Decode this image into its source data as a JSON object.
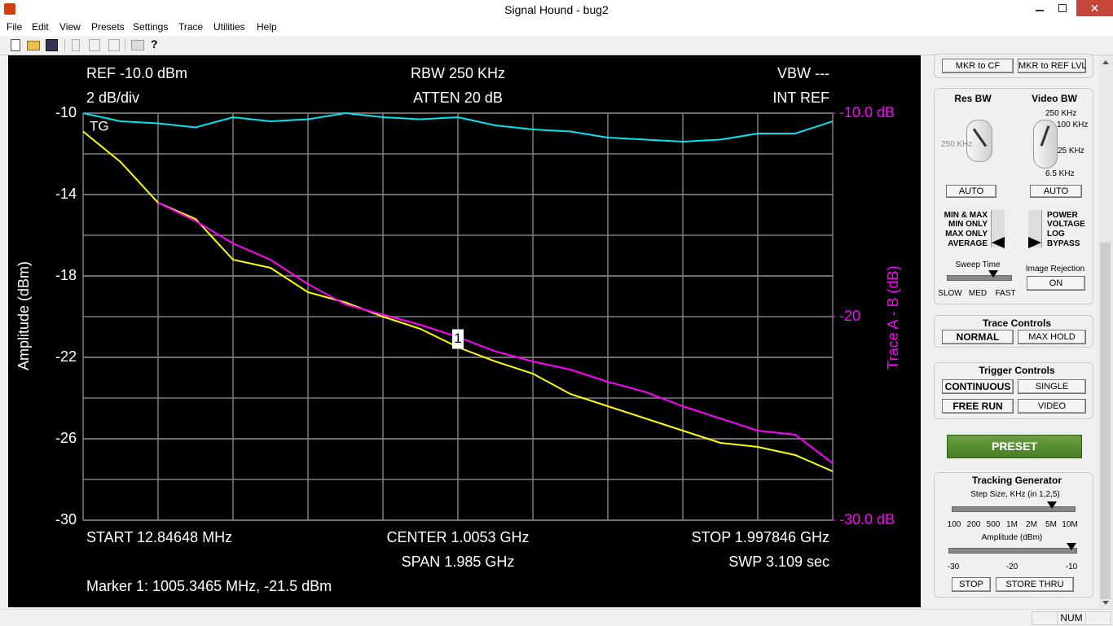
{
  "window": {
    "title": "Signal Hound - bug2"
  },
  "menu": [
    "File",
    "Edit",
    "View",
    "Presets",
    "Settings",
    "Trace",
    "Utilities",
    "Help"
  ],
  "chart_data": {
    "type": "line",
    "header": {
      "ref": "REF -10.0 dBm",
      "rbw": "RBW 250 KHz",
      "vbw": "VBW ---",
      "scale": "2 dB/div",
      "atten": "ATTEN 20 dB",
      "ref_source": "INT REF"
    },
    "corner_label": "TG",
    "footer": {
      "start": "START 12.84648 MHz",
      "center": "CENTER 1.0053 GHz",
      "stop": "STOP 1.997846 GHz",
      "span": "SPAN 1.985 GHz",
      "sweep": "SWP 3.109 sec",
      "marker": "Marker 1: 1005.3465 MHz, -21.5 dBm"
    },
    "ylabel": "Amplitude (dBm)",
    "y2label": "Trace A - B (dB)",
    "x": [
      12.85,
      112.1,
      211.35,
      310.6,
      409.85,
      509.1,
      608.35,
      707.6,
      806.85,
      906.1,
      1005.35,
      1104.6,
      1203.85,
      1303.1,
      1402.35,
      1501.6,
      1600.85,
      1700.1,
      1799.35,
      1898.6,
      1997.85
    ],
    "xlim": [
      12.84648,
      1997.846
    ],
    "ylim": [
      -30,
      -10
    ],
    "yticks": [
      -30,
      -26,
      -22,
      -18,
      -14,
      -10
    ],
    "y2lim": [
      -30,
      -10
    ],
    "y2ticks": [
      {
        "value": -30,
        "label": "-30.0 dB"
      },
      -20,
      {
        "value": -10,
        "label": "-10.0 dB"
      }
    ],
    "grid": true,
    "series": [
      {
        "color": "#ffff00",
        "values": [
          -10.9,
          -12.4,
          -14.4,
          -15.2,
          -17.2,
          -17.6,
          -18.8,
          -19.3,
          -20.0,
          -20.6,
          -21.5,
          -22.2,
          -22.8,
          -23.8,
          -24.4,
          -25.0,
          -25.6,
          -26.2,
          -26.4,
          -26.8,
          -27.6
        ]
      },
      {
        "color": "#ff00ff",
        "axis": "y2",
        "values": [
          null,
          null,
          -14.4,
          -15.3,
          -16.4,
          -17.2,
          -18.4,
          -19.4,
          -19.9,
          -20.4,
          -21.0,
          -21.7,
          -22.2,
          -22.6,
          -23.2,
          -23.7,
          -24.4,
          -25.0,
          -25.6,
          -25.8,
          -27.2
        ]
      },
      {
        "color": "#00e5ee",
        "values": [
          -10.0,
          -10.4,
          -10.5,
          -10.7,
          -10.2,
          -10.4,
          -10.3,
          -10.0,
          -10.2,
          -10.3,
          -10.2,
          -10.6,
          -10.8,
          -10.9,
          -11.2,
          -11.3,
          -11.4,
          -11.3,
          -11.0,
          -11.0,
          -10.4
        ]
      }
    ],
    "marker": {
      "label": "1",
      "x": 1005.3465,
      "y": -21.5
    }
  },
  "panel": {
    "marker_buttons": [
      "MKR to CF",
      "MKR to REF LVL"
    ],
    "res_bw": {
      "title": "Res BW",
      "dial_label": "250 KHz",
      "auto": "AUTO"
    },
    "video_bw": {
      "title": "Video BW",
      "dial_labels": [
        "250 KHz",
        "100 KHz",
        "25 KHz",
        "6.5 KHz"
      ],
      "auto": "AUTO"
    },
    "detector": [
      "MIN & MAX",
      "MIN ONLY",
      "MAX ONLY",
      "AVERAGE"
    ],
    "units": [
      "POWER",
      "VOLTAGE",
      "LOG",
      "BYPASS"
    ],
    "sweep_time": {
      "title": "Sweep Time",
      "labels": [
        "SLOW",
        "MED",
        "FAST"
      ]
    },
    "image_rejection": {
      "title": "Image Rejection",
      "button": "ON"
    },
    "trace_controls": {
      "title": "Trace Controls",
      "buttons": [
        "NORMAL",
        "MAX HOLD"
      ]
    },
    "trigger_controls": {
      "title": "Trigger Controls",
      "buttons": [
        "CONTINUOUS",
        "SINGLE",
        "FREE RUN",
        "VIDEO"
      ]
    },
    "preset": "PRESET",
    "tracking_generator": {
      "title": "Tracking Generator",
      "step_label": "Step Size, KHz (in 1,2,5)",
      "step_ticks": [
        "100",
        "200",
        "500",
        "1M",
        "2M",
        "5M",
        "10M"
      ],
      "amplitude_label": "Amplitude (dBm)",
      "amplitude_ticks": [
        "-30",
        "-20",
        "-10"
      ],
      "buttons": [
        "STOP",
        "STORE THRU"
      ]
    }
  },
  "status": {
    "num": "NUM"
  }
}
